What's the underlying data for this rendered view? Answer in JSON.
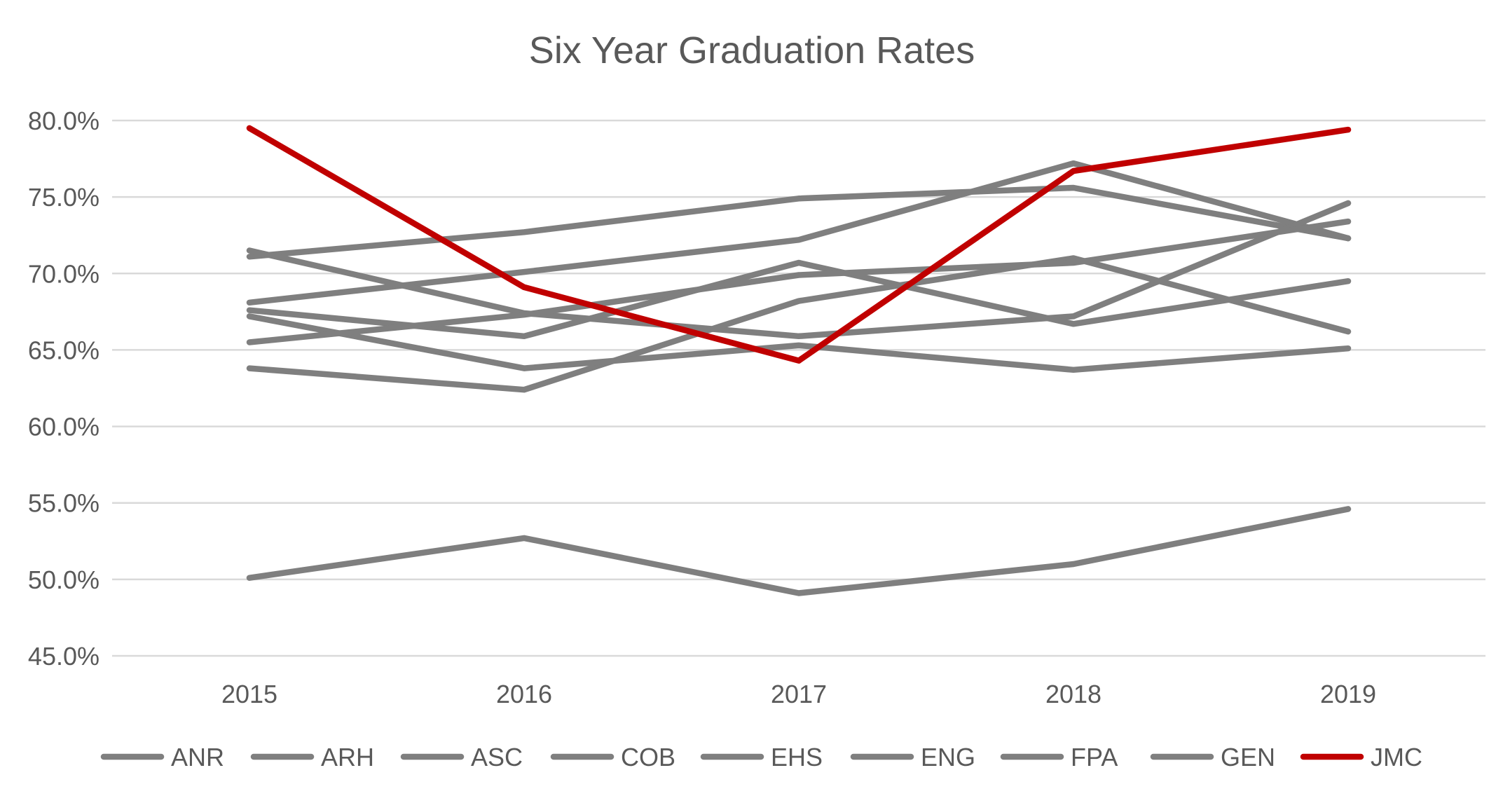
{
  "chart_data": {
    "type": "line",
    "title": "Six Year Graduation Rates",
    "xlabel": "",
    "ylabel": "",
    "categories": [
      "2015",
      "2016",
      "2017",
      "2018",
      "2019"
    ],
    "ylim": [
      45.0,
      80.0
    ],
    "ytick_values": [
      45,
      50,
      55,
      60,
      65,
      70,
      75,
      80
    ],
    "ytick_labels": [
      "45.0%",
      "50.0%",
      "55.0%",
      "60.0%",
      "65.0%",
      "70.0%",
      "75.0%",
      "80.0%"
    ],
    "grid": true,
    "legend_position": "bottom",
    "series": [
      {
        "name": "ANR",
        "color": "#7f7f7f",
        "values": [
          71.1,
          72.7,
          74.9,
          75.6,
          72.3
        ]
      },
      {
        "name": "ARH",
        "color": "#7f7f7f",
        "values": [
          68.1,
          70.1,
          72.2,
          77.2,
          72.3
        ]
      },
      {
        "name": "ASC",
        "color": "#7f7f7f",
        "values": [
          71.5,
          67.4,
          65.9,
          67.2,
          74.6
        ]
      },
      {
        "name": "COB",
        "color": "#7f7f7f",
        "values": [
          67.6,
          65.9,
          70.7,
          66.7,
          69.5
        ]
      },
      {
        "name": "EHS",
        "color": "#7f7f7f",
        "values": [
          63.8,
          62.4,
          68.2,
          71.0,
          66.2
        ]
      },
      {
        "name": "ENG",
        "color": "#7f7f7f",
        "values": [
          67.2,
          63.8,
          65.3,
          63.7,
          65.1
        ]
      },
      {
        "name": "FPA",
        "color": "#7f7f7f",
        "values": [
          65.5,
          67.3,
          69.9,
          70.7,
          73.4
        ]
      },
      {
        "name": "GEN",
        "color": "#7f7f7f",
        "values": [
          50.1,
          52.7,
          49.1,
          51.0,
          54.6
        ]
      },
      {
        "name": "JMC",
        "color": "#c00000",
        "values": [
          79.5,
          69.1,
          64.3,
          76.7,
          79.4
        ]
      }
    ]
  }
}
